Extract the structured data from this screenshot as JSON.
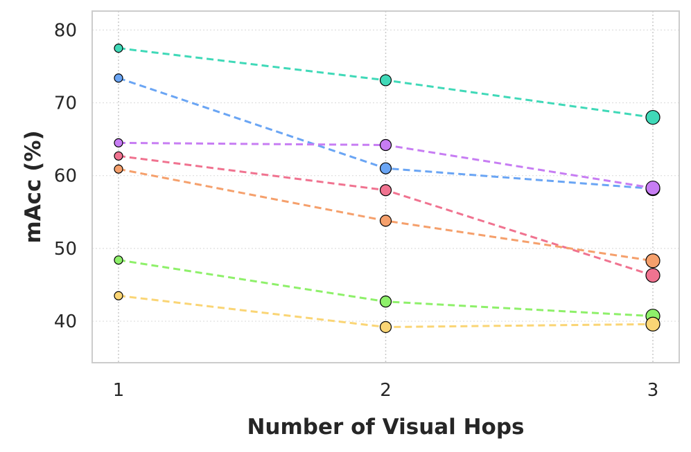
{
  "chart_data": {
    "type": "line",
    "xlabel": "Number of Visual Hops",
    "ylabel": "mAcc (%)",
    "x": [
      1,
      2,
      3
    ],
    "xticks": [
      "1",
      "2",
      "3"
    ],
    "yticks": [
      "40",
      "50",
      "60",
      "70",
      "80"
    ],
    "ylim": [
      34.3,
      82.6
    ],
    "grid": true,
    "legend": "none",
    "line_style": "dashed",
    "series": [
      {
        "color": "#40d9b8",
        "values": [
          77.5,
          73.1,
          68.0
        ]
      },
      {
        "color": "#6aa5f4",
        "values": [
          73.4,
          61.0,
          58.2
        ]
      },
      {
        "color": "#c77df3",
        "values": [
          64.5,
          64.2,
          58.3
        ]
      },
      {
        "color": "#f07390",
        "values": [
          62.7,
          58.0,
          46.3
        ]
      },
      {
        "color": "#f5a06c",
        "values": [
          60.9,
          53.8,
          48.3
        ]
      },
      {
        "color": "#8ef06a",
        "values": [
          48.4,
          42.7,
          40.7
        ]
      },
      {
        "color": "#fad575",
        "values": [
          43.5,
          39.2,
          39.6
        ]
      }
    ]
  }
}
